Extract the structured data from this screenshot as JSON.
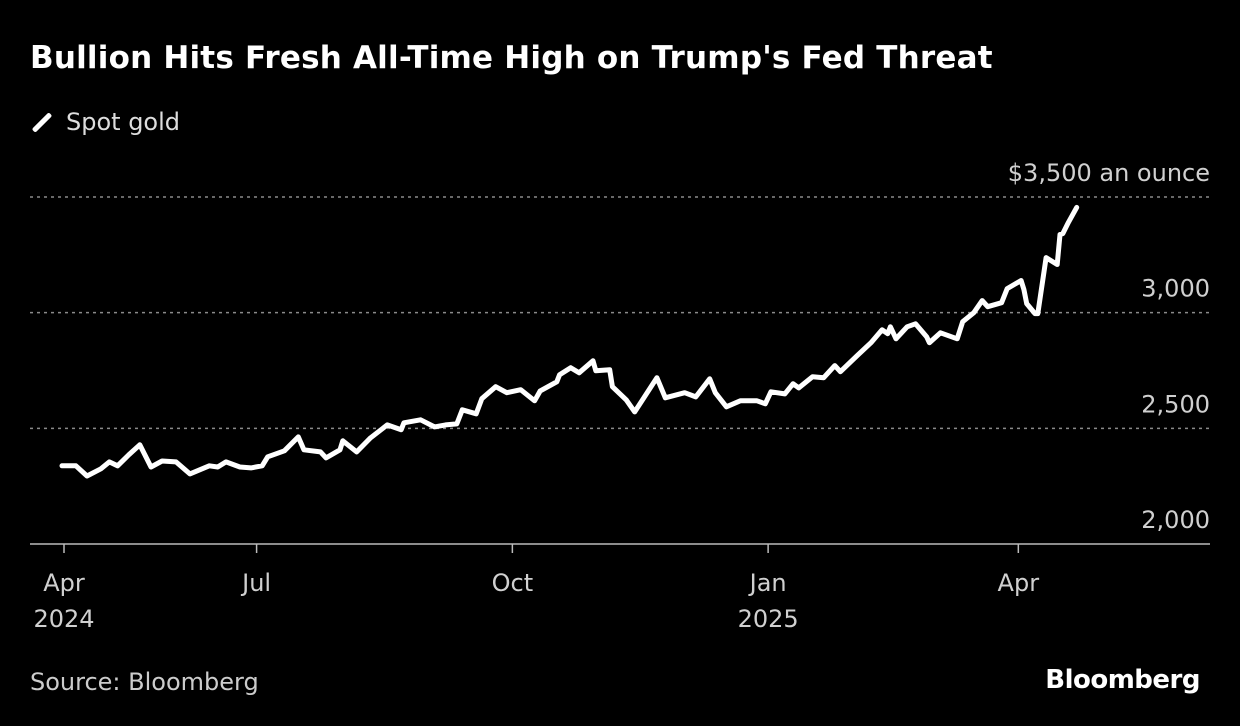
{
  "chart_data": {
    "type": "line",
    "title": "Bullion Hits Fresh All-Time High on Trump's Fed Threat",
    "legend": {
      "position": "top-left",
      "entries": [
        "Spot gold"
      ]
    },
    "series": [
      {
        "name": "Spot gold",
        "color": "#ffffff",
        "points": [
          [
            "2024-04-22",
            2338
          ],
          [
            "2024-04-27",
            2338
          ],
          [
            "2024-05-01",
            2294
          ],
          [
            "2024-05-06",
            2325
          ],
          [
            "2024-05-09",
            2355
          ],
          [
            "2024-05-12",
            2338
          ],
          [
            "2024-05-16",
            2385
          ],
          [
            "2024-05-20",
            2429
          ],
          [
            "2024-05-24",
            2333
          ],
          [
            "2024-05-28",
            2359
          ],
          [
            "2024-06-02",
            2355
          ],
          [
            "2024-06-07",
            2303
          ],
          [
            "2024-06-14",
            2338
          ],
          [
            "2024-06-17",
            2333
          ],
          [
            "2024-06-20",
            2355
          ],
          [
            "2024-06-25",
            2333
          ],
          [
            "2024-06-29",
            2329
          ],
          [
            "2024-07-03",
            2338
          ],
          [
            "2024-07-05",
            2377
          ],
          [
            "2024-07-11",
            2403
          ],
          [
            "2024-07-16",
            2463
          ],
          [
            "2024-07-18",
            2407
          ],
          [
            "2024-07-24",
            2398
          ],
          [
            "2024-07-26",
            2372
          ],
          [
            "2024-07-31",
            2407
          ],
          [
            "2024-08-01",
            2446
          ],
          [
            "2024-08-06",
            2398
          ],
          [
            "2024-08-11",
            2459
          ],
          [
            "2024-08-17",
            2515
          ],
          [
            "2024-08-22",
            2494
          ],
          [
            "2024-08-23",
            2524
          ],
          [
            "2024-08-29",
            2537
          ],
          [
            "2024-09-03",
            2506
          ],
          [
            "2024-09-07",
            2515
          ],
          [
            "2024-09-11",
            2519
          ],
          [
            "2024-09-13",
            2580
          ],
          [
            "2024-09-18",
            2563
          ],
          [
            "2024-09-20",
            2628
          ],
          [
            "2024-09-25",
            2680
          ],
          [
            "2024-09-29",
            2654
          ],
          [
            "2024-10-04",
            2667
          ],
          [
            "2024-10-09",
            2619
          ],
          [
            "2024-10-11",
            2662
          ],
          [
            "2024-10-17",
            2701
          ],
          [
            "2024-10-18",
            2732
          ],
          [
            "2024-10-22",
            2762
          ],
          [
            "2024-10-25",
            2740
          ],
          [
            "2024-10-30",
            2792
          ],
          [
            "2024-10-31",
            2749
          ],
          [
            "2024-11-05",
            2753
          ],
          [
            "2024-11-06",
            2680
          ],
          [
            "2024-11-11",
            2623
          ],
          [
            "2024-11-14",
            2571
          ],
          [
            "2024-11-22",
            2719
          ],
          [
            "2024-11-25",
            2632
          ],
          [
            "2024-12-02",
            2654
          ],
          [
            "2024-12-06",
            2636
          ],
          [
            "2024-12-11",
            2714
          ],
          [
            "2024-12-13",
            2654
          ],
          [
            "2024-12-17",
            2593
          ],
          [
            "2024-12-22",
            2619
          ],
          [
            "2024-12-28",
            2619
          ],
          [
            "2024-12-31",
            2606
          ],
          [
            "2025-01-02",
            2658
          ],
          [
            "2025-01-07",
            2649
          ],
          [
            "2025-01-10",
            2693
          ],
          [
            "2025-01-12",
            2675
          ],
          [
            "2025-01-17",
            2723
          ],
          [
            "2025-01-21",
            2719
          ],
          [
            "2025-01-25",
            2771
          ],
          [
            "2025-01-27",
            2745
          ],
          [
            "2025-02-02",
            2814
          ],
          [
            "2025-02-07",
            2870
          ],
          [
            "2025-02-11",
            2926
          ],
          [
            "2025-02-13",
            2909
          ],
          [
            "2025-02-14",
            2939
          ],
          [
            "2025-02-16",
            2887
          ],
          [
            "2025-02-20",
            2939
          ],
          [
            "2025-02-23",
            2952
          ],
          [
            "2025-02-27",
            2896
          ],
          [
            "2025-02-28",
            2870
          ],
          [
            "2025-03-04",
            2913
          ],
          [
            "2025-03-10",
            2887
          ],
          [
            "2025-03-12",
            2961
          ],
          [
            "2025-03-16",
            3000
          ],
          [
            "2025-03-19",
            3052
          ],
          [
            "2025-03-21",
            3026
          ],
          [
            "2025-03-26",
            3043
          ],
          [
            "2025-03-28",
            3104
          ],
          [
            "2025-04-02",
            3139
          ],
          [
            "2025-04-03",
            3100
          ],
          [
            "2025-04-04",
            3039
          ],
          [
            "2025-04-07",
            2996
          ],
          [
            "2025-04-08",
            2996
          ],
          [
            "2025-04-11",
            3238
          ],
          [
            "2025-04-15",
            3208
          ],
          [
            "2025-04-16",
            3338
          ],
          [
            "2025-04-17",
            3342
          ],
          [
            "2025-04-19",
            3390
          ],
          [
            "2025-04-22",
            3455
          ]
        ]
      }
    ],
    "y_axis": {
      "range": [
        2000,
        3500
      ],
      "ticks": [
        {
          "value": 2000,
          "label": "2,000"
        },
        {
          "value": 2500,
          "label": "2,500"
        },
        {
          "value": 3000,
          "label": "3,000"
        },
        {
          "value": 3500,
          "label": "$3,500 an ounce"
        }
      ],
      "grid": "dotted"
    },
    "x_axis": {
      "range": [
        "2024-04-22",
        "2025-05-27"
      ],
      "ticks": [
        {
          "date": "2024-04-22",
          "label": "Apr",
          "sublabel": "2024"
        },
        {
          "date": "2024-07-01",
          "label": "Jul",
          "sublabel": ""
        },
        {
          "date": "2024-10-01",
          "label": "Oct",
          "sublabel": ""
        },
        {
          "date": "2025-01-01",
          "label": "Jan",
          "sublabel": "2025"
        },
        {
          "date": "2025-04-01",
          "label": "Apr",
          "sublabel": ""
        }
      ]
    }
  },
  "footer": {
    "source": "Source: Bloomberg",
    "logo": "Bloomberg"
  }
}
